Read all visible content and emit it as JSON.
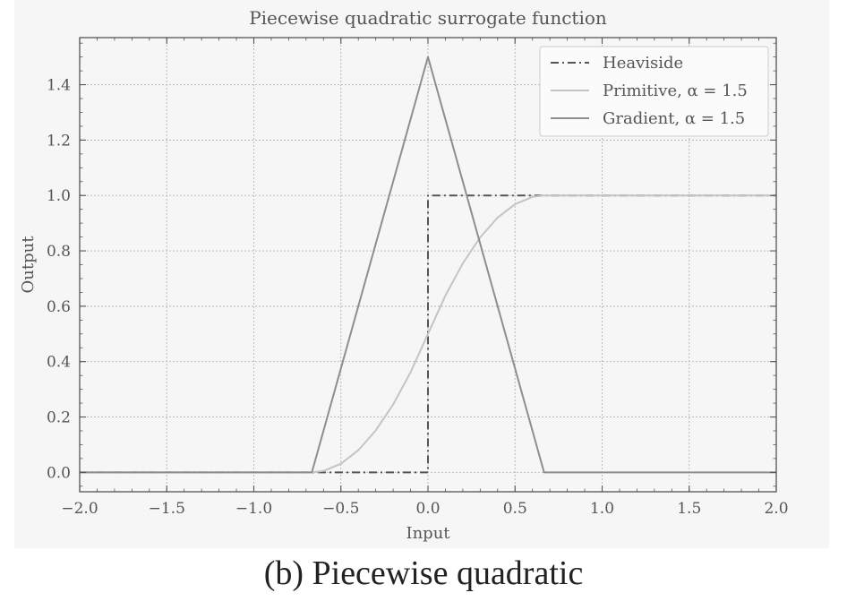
{
  "caption": "(b) Piecewise quadratic",
  "chart_data": {
    "type": "line",
    "title": "Piecewise quadratic surrogate function",
    "xlabel": "Input",
    "ylabel": "Output",
    "xlim": [
      -2.0,
      2.0
    ],
    "ylim": [
      -0.07,
      1.57
    ],
    "x_ticks": [
      "−2.0",
      "−1.5",
      "−1.0",
      "−0.5",
      "0.0",
      "0.5",
      "1.0",
      "1.5",
      "2.0"
    ],
    "x_tick_values": [
      -2.0,
      -1.5,
      -1.0,
      -0.5,
      0.0,
      0.5,
      1.0,
      1.5,
      2.0
    ],
    "y_ticks": [
      "0.0",
      "0.2",
      "0.4",
      "0.6",
      "0.8",
      "1.0",
      "1.2",
      "1.4"
    ],
    "y_tick_values": [
      0.0,
      0.2,
      0.4,
      0.6,
      0.8,
      1.0,
      1.2,
      1.4
    ],
    "grid": true,
    "legend_position": "top-right",
    "series": [
      {
        "name": "Heaviside",
        "style": "dashdot",
        "color": "#555555",
        "x": [
          -2.0,
          0.0,
          0.0,
          2.0
        ],
        "y": [
          0.0,
          0.0,
          1.0,
          1.0
        ]
      },
      {
        "name": "Primitive, α = 1.5",
        "style": "solid",
        "color": "#c4c4c4",
        "x": [
          -2.0,
          -0.6667,
          -0.6,
          -0.5,
          -0.4,
          -0.3,
          -0.2,
          -0.1,
          0.0,
          0.1,
          0.2,
          0.3,
          0.4,
          0.5,
          0.6,
          0.6667,
          2.0
        ],
        "y": [
          0.0,
          0.0,
          0.005,
          0.0313,
          0.08,
          0.1513,
          0.245,
          0.3613,
          0.5,
          0.6388,
          0.755,
          0.8488,
          0.92,
          0.9688,
          0.995,
          1.0,
          1.0
        ]
      },
      {
        "name": "Gradient, α = 1.5",
        "style": "solid",
        "color": "#8e8e8e",
        "x": [
          -2.0,
          -0.6667,
          0.0,
          0.6667,
          2.0
        ],
        "y": [
          0.0,
          0.0,
          1.5,
          0.0,
          0.0
        ]
      }
    ]
  }
}
